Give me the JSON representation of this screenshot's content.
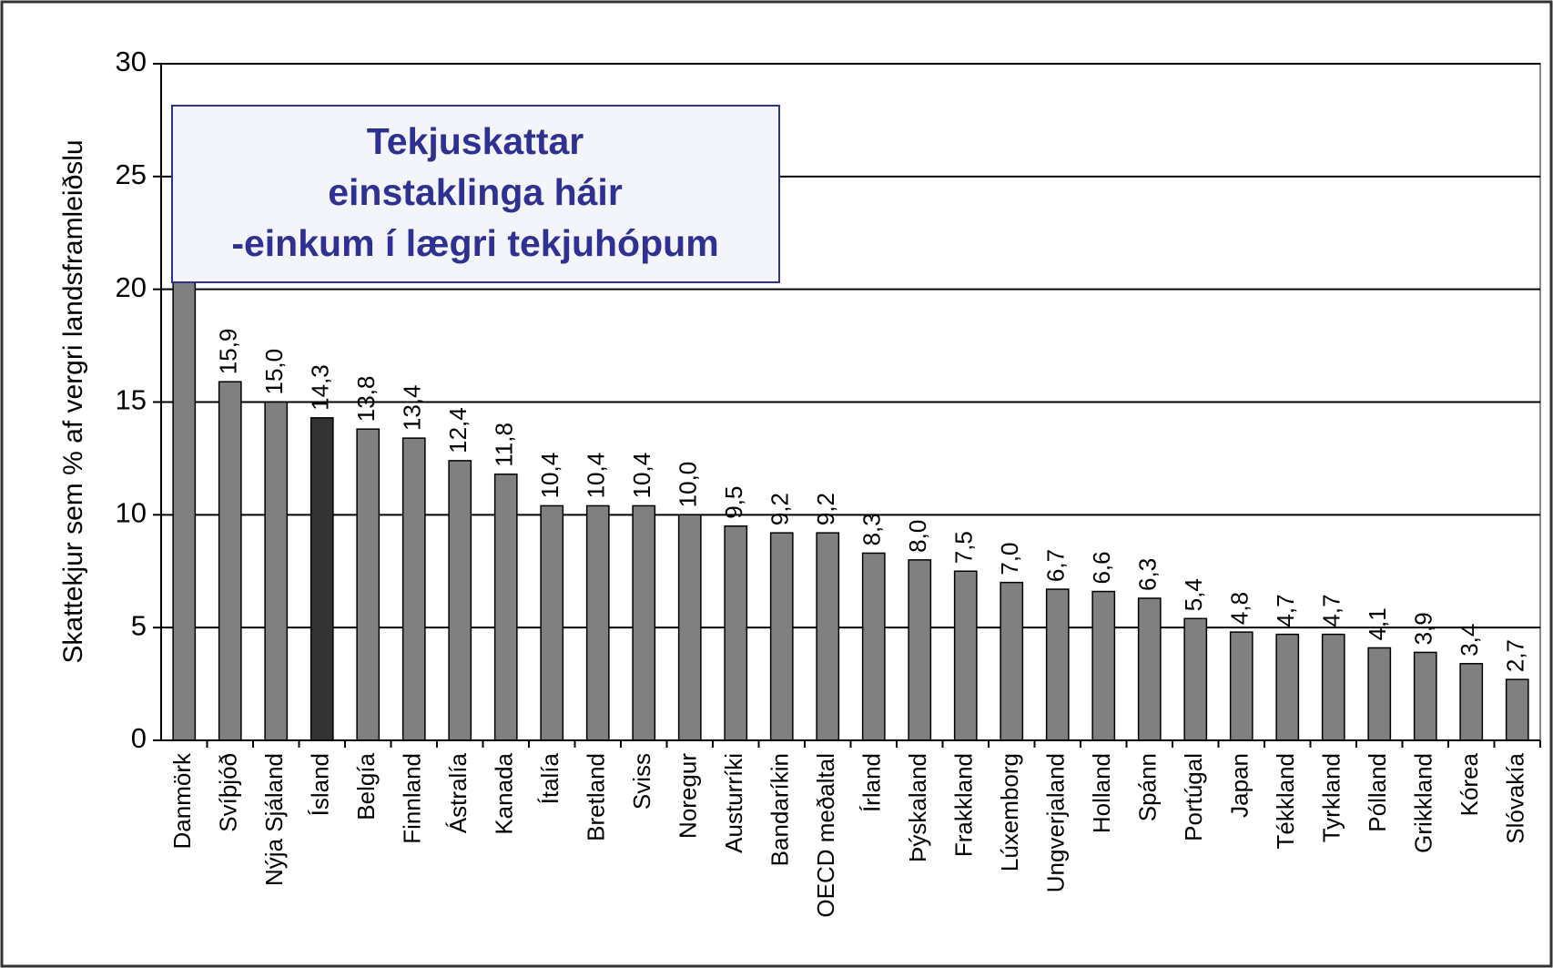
{
  "chart_data": {
    "type": "bar",
    "annotation": [
      "Tekjuskattar",
      "einstaklinga háir",
      "-einkum í lægri tekjuhópum"
    ],
    "y_label": "Skattekjur sem % af vergri landsframleiðslu",
    "categories": [
      "Danmörk",
      "Svíþjóð",
      "Nýja Sjáland",
      "Ísland",
      "Belgía",
      "Finnland",
      "Ástralía",
      "Kanada",
      "Ítalía",
      "Bretland",
      "Sviss",
      "Noregur",
      "Austurríki",
      "Bandaríkin",
      "OECD meðaltal",
      "Írland",
      "Þýskaland",
      "Frakkland",
      "Lúxemborg",
      "Ungverjaland",
      "Holland",
      "Spánn",
      "Portúgal",
      "Japan",
      "Tékkland",
      "Tyrkland",
      "Pólland",
      "Grikkland",
      "Kórea",
      "Slóvakía"
    ],
    "values": [
      24.5,
      15.9,
      15.0,
      14.3,
      13.8,
      13.4,
      12.4,
      11.8,
      10.4,
      10.4,
      10.4,
      10.0,
      9.5,
      9.2,
      9.2,
      8.3,
      8.0,
      7.5,
      7.0,
      6.7,
      6.6,
      6.3,
      5.4,
      4.8,
      4.7,
      4.7,
      4.1,
      3.9,
      3.4,
      2.7
    ],
    "value_labels": [
      null,
      "15,9",
      "15,0",
      "14,3",
      "13,8",
      "13,4",
      "12,4",
      "11,8",
      "10,4",
      "10,4",
      "10,4",
      "10,0",
      "9,5",
      "9,2",
      "9,2",
      "8,3",
      "8,0",
      "7,5",
      "7,0",
      "6,7",
      "6,6",
      "6,3",
      "5,4",
      "4,8",
      "4,7",
      "4,7",
      "4,1",
      "3,9",
      "3,4",
      "2,7"
    ],
    "color": "#808080",
    "highlight": {
      "index": 3,
      "color": "#333333"
    },
    "ylim": [
      0,
      30
    ],
    "yticks": [
      0,
      5,
      10,
      15,
      20,
      25,
      30
    ],
    "grid": true
  }
}
